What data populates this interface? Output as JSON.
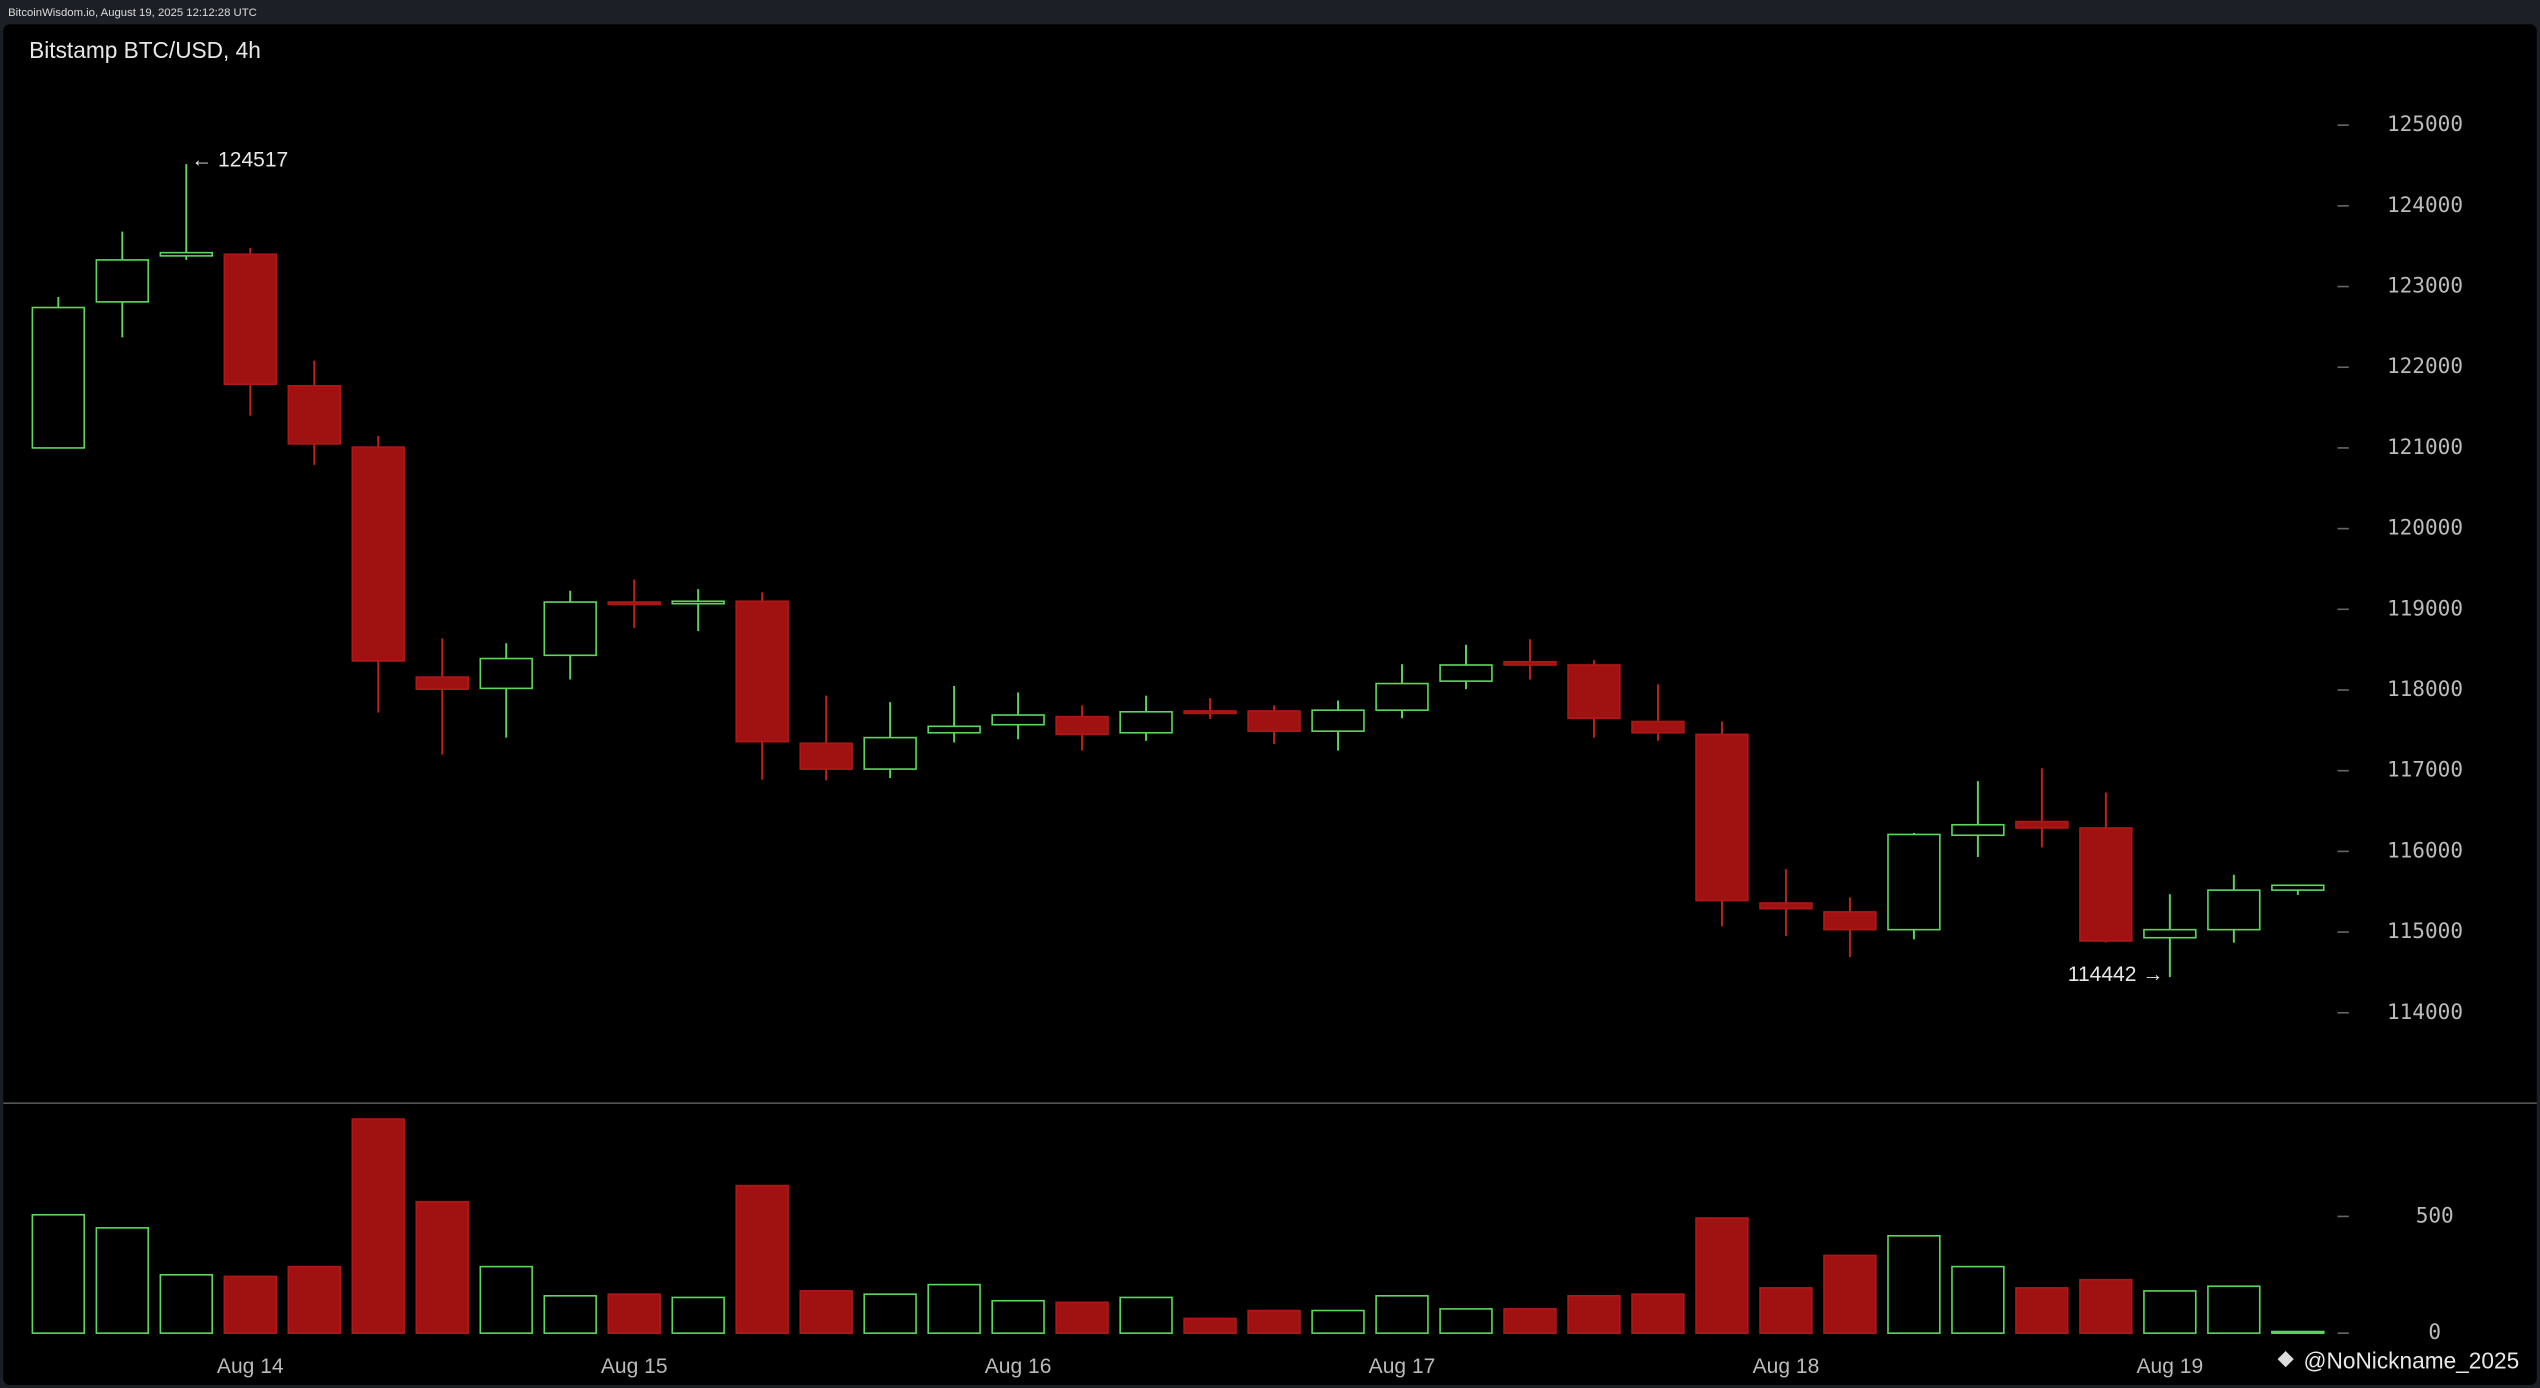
{
  "header": "BitcoinWisdom.io, August 19, 2025 12:12:28 UTC",
  "watermark": "@NoNickname_2025",
  "chart_data": [
    {
      "type": "candlestick",
      "title": "Bitstamp BTC/USD, 4h",
      "categories": [
        null,
        null,
        null,
        "Aug 14",
        null,
        null,
        null,
        null,
        null,
        "Aug 15",
        null,
        null,
        null,
        null,
        null,
        "Aug 16",
        null,
        null,
        null,
        null,
        null,
        "Aug 17",
        null,
        null,
        null,
        null,
        null,
        "Aug 18",
        null,
        null,
        null,
        null,
        null,
        "Aug 19",
        null,
        null
      ],
      "open": [
        121000,
        122810,
        123380,
        123400,
        121770,
        121010,
        118160,
        118020,
        118430,
        119090,
        119070,
        119100,
        117340,
        117020,
        117470,
        117570,
        117670,
        117470,
        117740,
        117740,
        117490,
        117750,
        118110,
        118350,
        118310,
        117610,
        117450,
        115360,
        115250,
        115030,
        116200,
        116370,
        116290,
        114930,
        115030,
        115520
      ],
      "close": [
        122740,
        123330,
        123420,
        121790,
        121050,
        118360,
        118010,
        118390,
        119090,
        119070,
        119100,
        117360,
        117020,
        117410,
        117550,
        117690,
        117450,
        117730,
        117710,
        117490,
        117750,
        118080,
        118310,
        118310,
        117650,
        117470,
        115390,
        115290,
        115030,
        116210,
        116330,
        116290,
        114890,
        115030,
        115520,
        115580
      ],
      "high": [
        122870,
        123680,
        124517,
        123480,
        122080,
        121150,
        118640,
        118580,
        119230,
        119370,
        119250,
        119210,
        117930,
        117850,
        118050,
        117970,
        117810,
        117930,
        117900,
        117810,
        117870,
        118320,
        118560,
        118630,
        118370,
        118070,
        117610,
        115780,
        115430,
        116230,
        116870,
        117030,
        116730,
        115470,
        115710,
        115590
      ],
      "low": [
        121000,
        122370,
        123330,
        121400,
        120790,
        117720,
        117200,
        117410,
        118130,
        118770,
        118730,
        116890,
        116880,
        116910,
        117350,
        117390,
        117250,
        117370,
        117640,
        117330,
        117250,
        117650,
        118010,
        118130,
        117410,
        117370,
        115070,
        114950,
        114690,
        114910,
        115930,
        116050,
        114870,
        114442,
        114870,
        115460
      ],
      "up_color": "#5cd65c",
      "down_color": "#a01212",
      "ylim": [
        112900,
        126250
      ],
      "yticks": [
        114000,
        115000,
        116000,
        117000,
        118000,
        119000,
        120000,
        121000,
        122000,
        123000,
        124000,
        125000
      ],
      "annotations": [
        {
          "text": "← 124517",
          "value": 124517
        },
        {
          "text": "114442 →",
          "value": 114442
        }
      ]
    },
    {
      "type": "bar",
      "values": [
        507,
        451,
        250,
        243,
        285,
        917,
        563,
        285,
        160,
        167,
        153,
        632,
        181,
        167,
        208,
        139,
        132,
        153,
        63,
        97,
        97,
        160,
        104,
        104,
        160,
        167,
        493,
        194,
        333,
        417,
        285,
        194,
        229,
        181,
        201,
        7
      ],
      "ylim": [
        0,
        985
      ],
      "yticks": [
        0,
        500
      ]
    }
  ]
}
